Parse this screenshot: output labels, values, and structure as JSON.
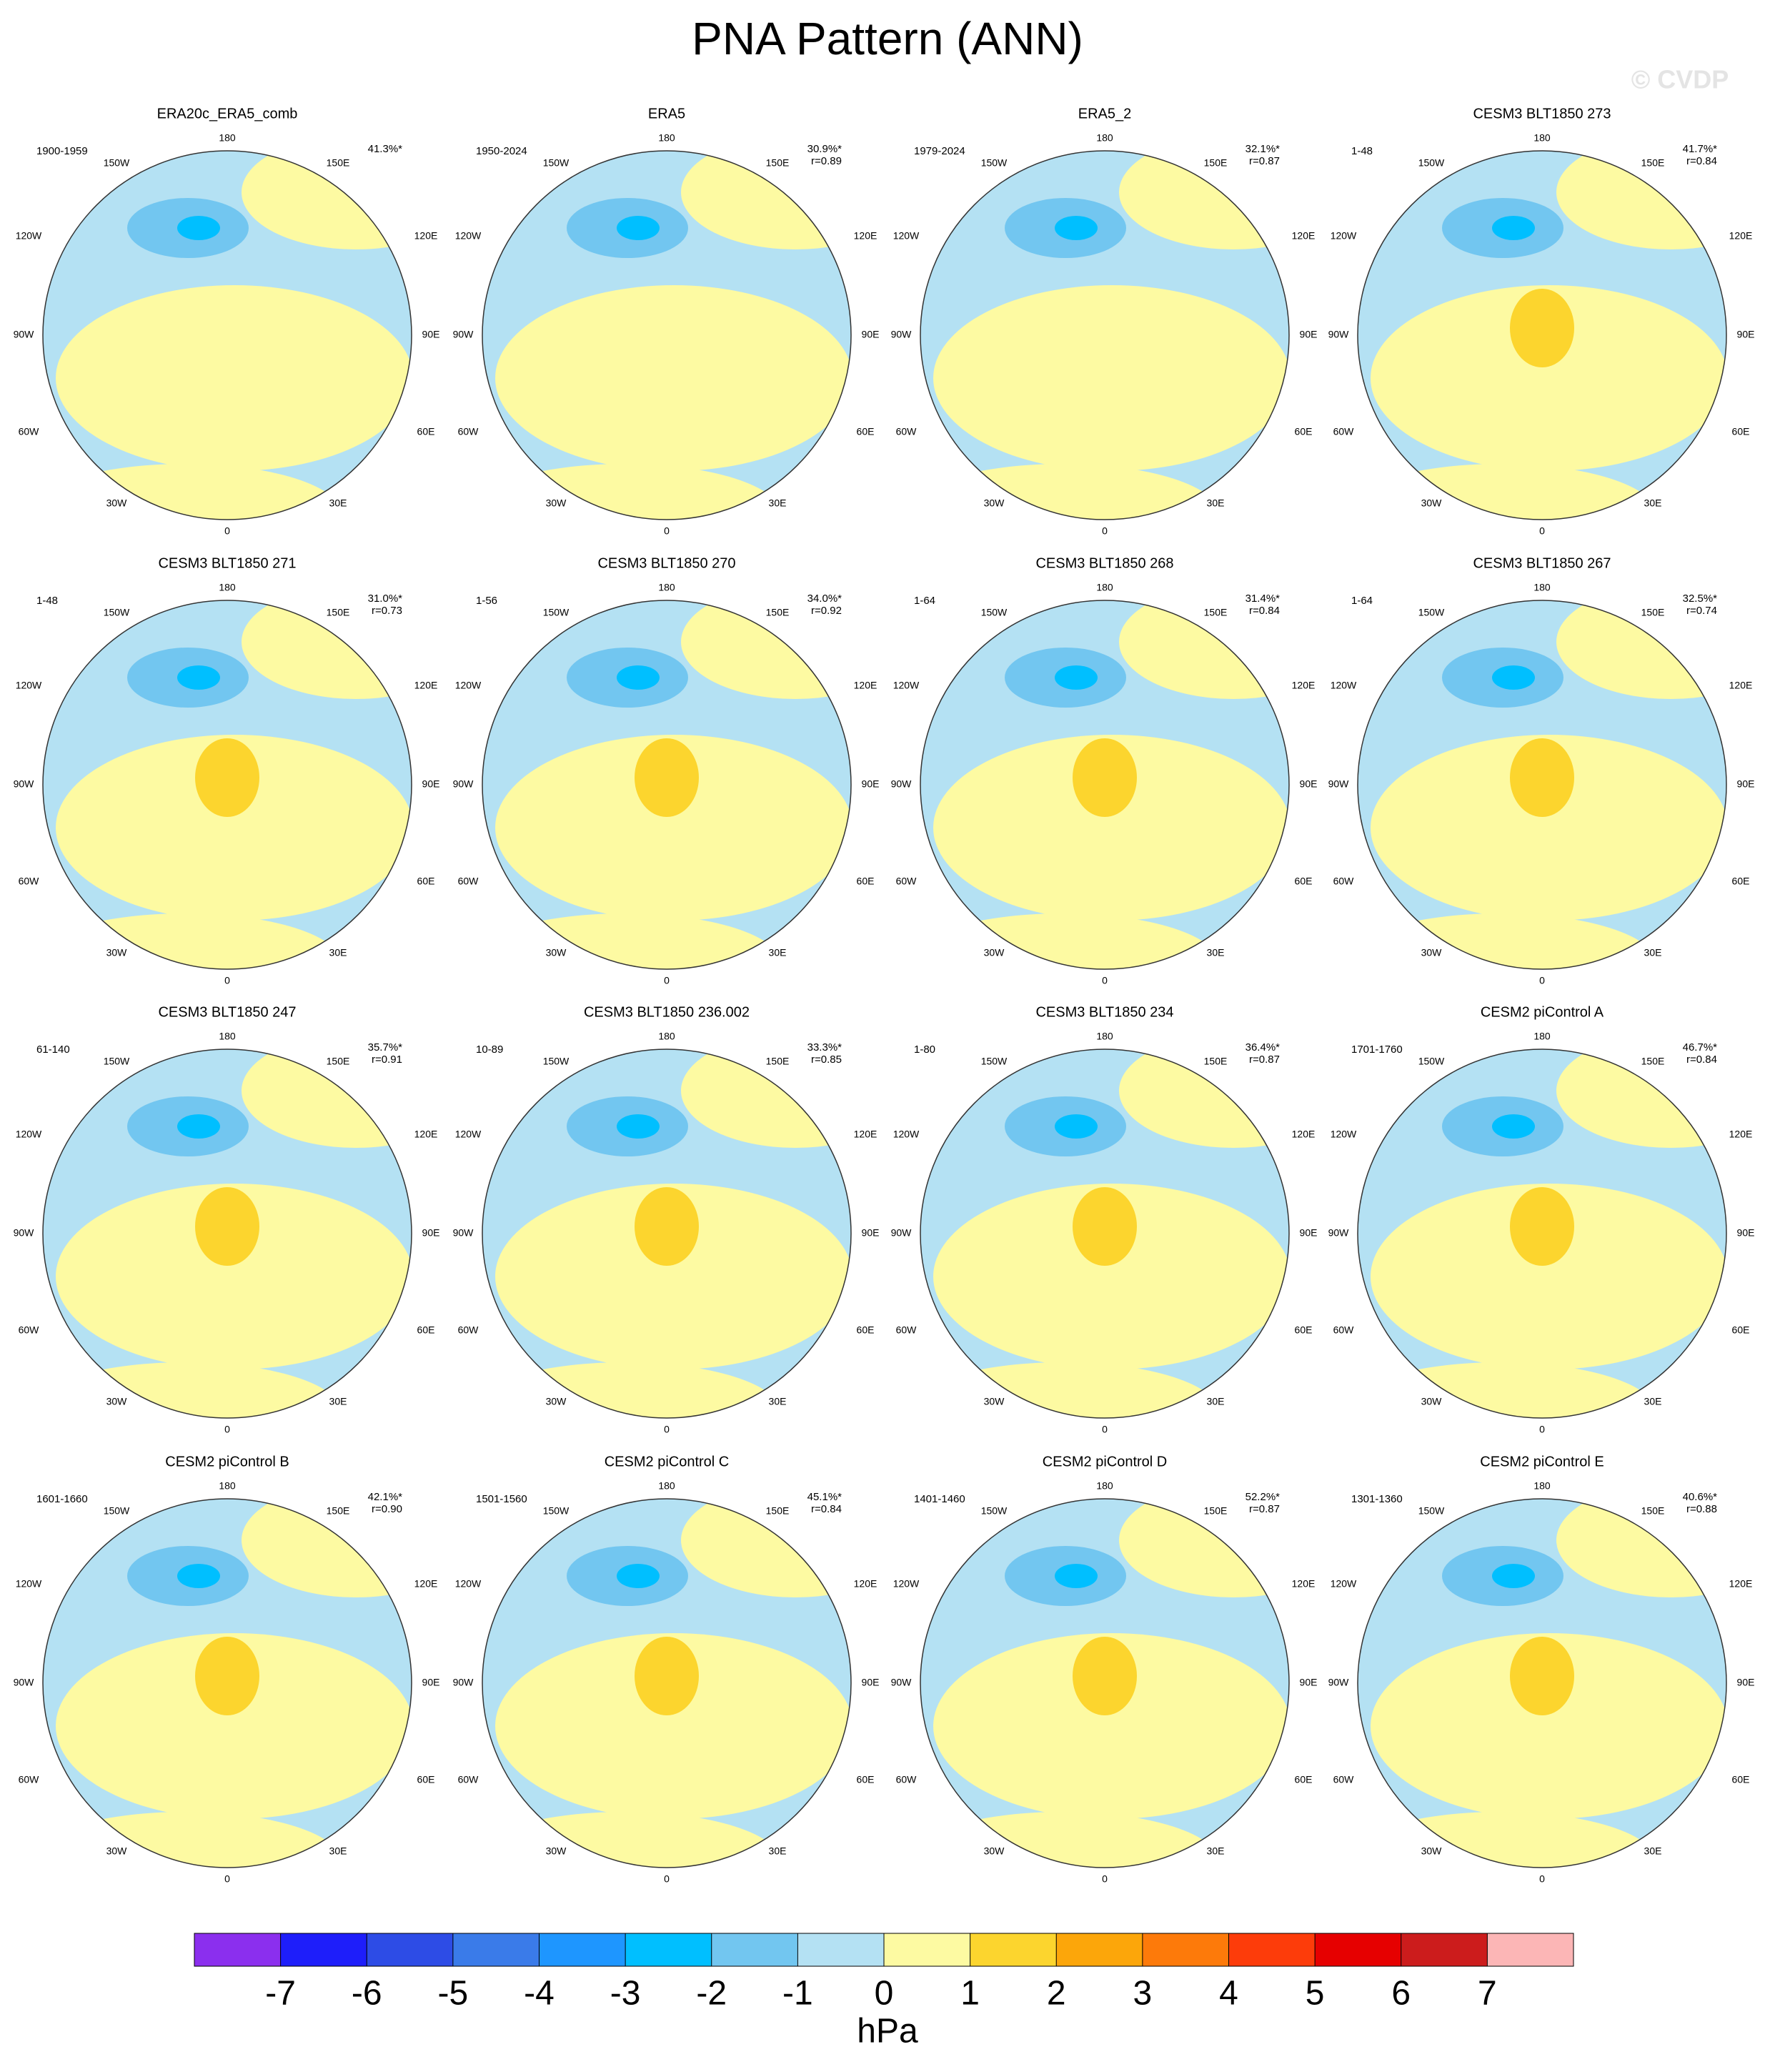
{
  "title": "PNA Pattern (ANN)",
  "watermark": "© CVDP",
  "longitude_labels": {
    "180": "180",
    "150W": "150W",
    "150E": "150E",
    "120W": "120W",
    "120E": "120E",
    "90W": "90W",
    "90E": "90E",
    "60W": "60W",
    "60E": "60E",
    "30W": "30W",
    "30E": "30E",
    "0": "0"
  },
  "panels": [
    {
      "title": "ERA20c_ERA5_comb",
      "period": "1900-1959",
      "pct": "41.3%*"
    },
    {
      "title": "ERA5",
      "period": "1950-2024",
      "pct": "30.9%*",
      "r": "r=0.89"
    },
    {
      "title": "ERA5_2",
      "period": "1979-2024",
      "pct": "32.1%*",
      "r": "r=0.87"
    },
    {
      "title": "CESM3 BLT1850 273",
      "period": "1-48",
      "pct": "41.7%*",
      "r": "r=0.84"
    },
    {
      "title": "CESM3 BLT1850 271",
      "period": "1-48",
      "pct": "31.0%*",
      "r": "r=0.73"
    },
    {
      "title": "CESM3 BLT1850 270",
      "period": "1-56",
      "pct": "34.0%*",
      "r": "r=0.92"
    },
    {
      "title": "CESM3 BLT1850 268",
      "period": "1-64",
      "pct": "31.4%*",
      "r": "r=0.84"
    },
    {
      "title": "CESM3 BLT1850 267",
      "period": "1-64",
      "pct": "32.5%*",
      "r": "r=0.74"
    },
    {
      "title": "CESM3 BLT1850 247",
      "period": "61-140",
      "pct": "35.7%*",
      "r": "r=0.91"
    },
    {
      "title": "CESM3 BLT1850 236.002",
      "period": "10-89",
      "pct": "33.3%*",
      "r": "r=0.85"
    },
    {
      "title": "CESM3 BLT1850 234",
      "period": "1-80",
      "pct": "36.4%*",
      "r": "r=0.87"
    },
    {
      "title": "CESM2 piControl A",
      "period": "1701-1760",
      "pct": "46.7%*",
      "r": "r=0.84"
    },
    {
      "title": "CESM2 piControl B",
      "period": "1601-1660",
      "pct": "42.1%*",
      "r": "r=0.90"
    },
    {
      "title": "CESM2 piControl C",
      "period": "1501-1560",
      "pct": "45.1%*",
      "r": "r=0.84"
    },
    {
      "title": "CESM2 piControl D",
      "period": "1401-1460",
      "pct": "52.2%*",
      "r": "r=0.87"
    },
    {
      "title": "CESM2 piControl E",
      "period": "1301-1360",
      "pct": "40.6%*",
      "r": "r=0.88"
    }
  ],
  "colorbar": {
    "levels": [
      -7,
      -6,
      -5,
      -4,
      -3,
      -2,
      -1,
      0,
      1,
      2,
      3,
      4,
      5,
      6,
      7
    ],
    "colors": [
      "#8b2fee",
      "#1e1efa",
      "#2d4ce6",
      "#3a7be9",
      "#1e96ff",
      "#00bfff",
      "#72c6f0",
      "#b4e1f3",
      "#fdfaa2",
      "#fcd52e",
      "#fca60a",
      "#fd7a0a",
      "#fd3c0a",
      "#e60000",
      "#cc1c1c",
      "#fcb6b6"
    ],
    "unit": "hPa"
  }
}
